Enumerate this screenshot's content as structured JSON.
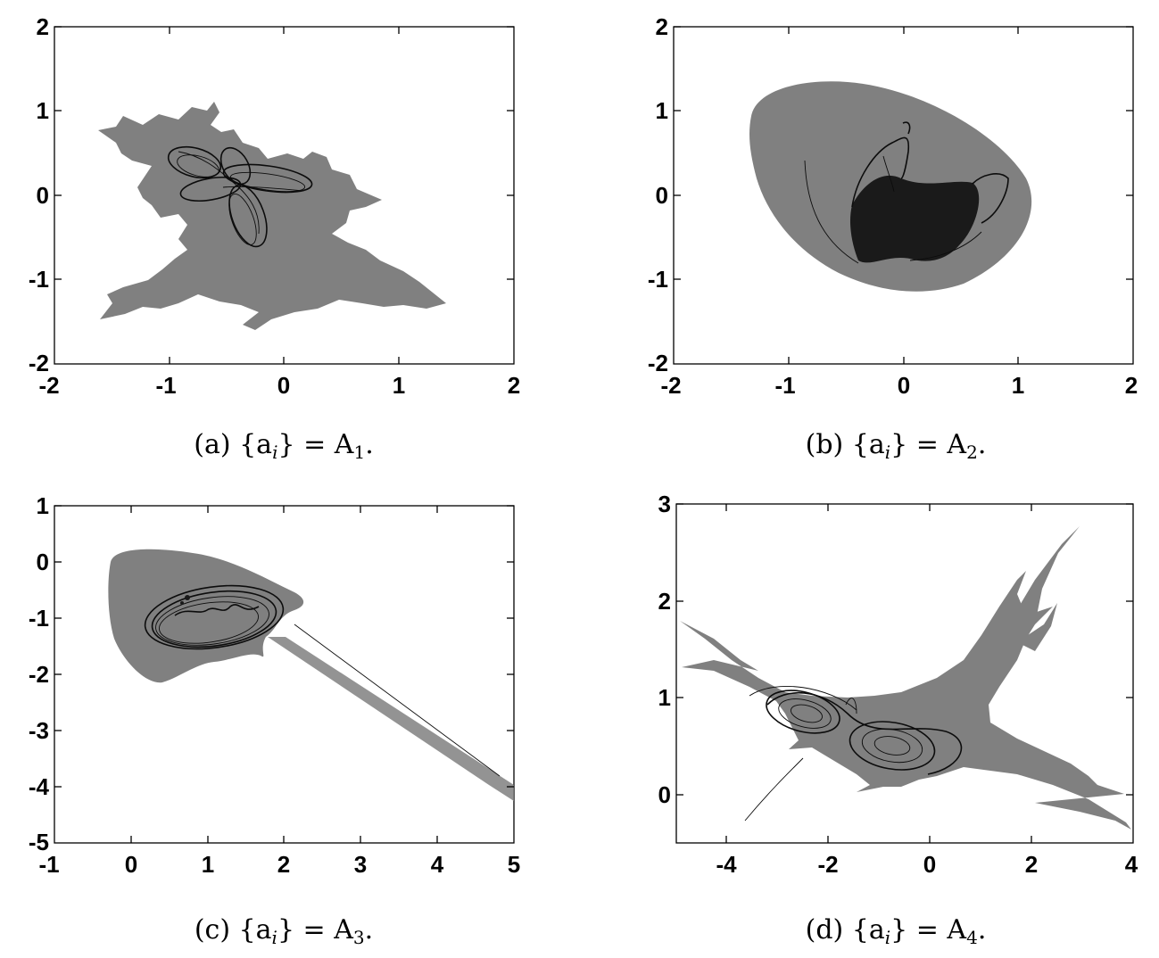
{
  "figure": {
    "panels": [
      {
        "id": "a",
        "caption_prefix": "(a) {a",
        "caption_sub_i": "i",
        "caption_mid": "} = A",
        "caption_sub_n": "1",
        "caption_suffix": ".",
        "x_ticks": [
          "-2",
          "-1",
          "0",
          "1",
          "2"
        ],
        "y_ticks": [
          "2",
          "1",
          "0",
          "-1",
          "-2"
        ]
      },
      {
        "id": "b",
        "caption_prefix": "(b) {a",
        "caption_sub_i": "i",
        "caption_mid": "} = A",
        "caption_sub_n": "2",
        "caption_suffix": ".",
        "x_ticks": [
          "-2",
          "-1",
          "0",
          "1",
          "2"
        ],
        "y_ticks": [
          "2",
          "1",
          "0",
          "-1",
          "-2"
        ]
      },
      {
        "id": "c",
        "caption_prefix": "(c) {a",
        "caption_sub_i": "i",
        "caption_mid": "} = A",
        "caption_sub_n": "3",
        "caption_suffix": ".",
        "x_ticks": [
          "-1",
          "0",
          "1",
          "2",
          "3",
          "4",
          "5"
        ],
        "y_ticks": [
          "1",
          "0",
          "-1",
          "-2",
          "-3",
          "-4",
          "-5"
        ]
      },
      {
        "id": "d",
        "caption_prefix": "(d) {a",
        "caption_sub_i": "i",
        "caption_mid": "} = A",
        "caption_sub_n": "4",
        "caption_suffix": ".",
        "x_ticks": [
          "-4",
          "-2",
          "0",
          "2",
          "4"
        ],
        "y_ticks": [
          "3",
          "2",
          "1",
          "0"
        ]
      }
    ],
    "colors": {
      "basin": "#808080",
      "attractor": "#0c0c0c",
      "background": "#ffffff"
    }
  }
}
